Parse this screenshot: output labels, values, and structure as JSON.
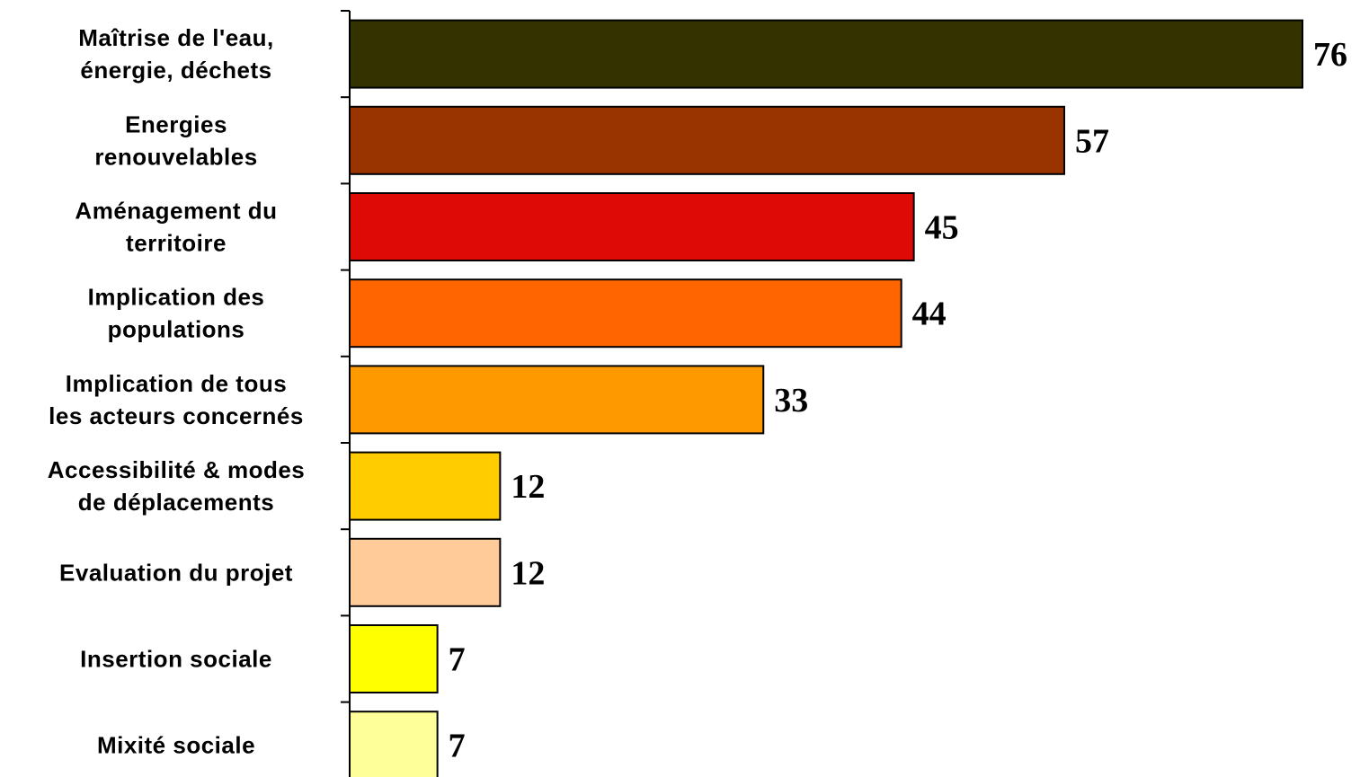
{
  "chart_data": {
    "type": "bar",
    "orientation": "horizontal",
    "categories": [
      [
        "Maîtrise de l'eau,",
        "énergie, déchets"
      ],
      [
        "Energies",
        "renouvelables"
      ],
      [
        "Aménagement du",
        "territoire"
      ],
      [
        "Implication des",
        "populations"
      ],
      [
        "Implication de tous",
        "les acteurs concernés"
      ],
      [
        "Accessibilité & modes",
        "de déplacements"
      ],
      [
        "Evaluation du projet"
      ],
      [
        "Insertion sociale"
      ],
      [
        "Mixité sociale"
      ]
    ],
    "values": [
      76,
      57,
      45,
      44,
      33,
      12,
      12,
      7,
      7
    ],
    "value_labels": [
      "76",
      "57",
      "45",
      "44",
      "33",
      "12",
      "12",
      "7",
      "7"
    ],
    "colors": [
      "#333300",
      "#993300",
      "#DD0A05",
      "#FF6600",
      "#FF9900",
      "#FFCC00",
      "#FFCC99",
      "#FFFF00",
      "#FFFF99"
    ],
    "xlim": [
      0,
      76
    ],
    "grid": false,
    "legend": "none"
  }
}
